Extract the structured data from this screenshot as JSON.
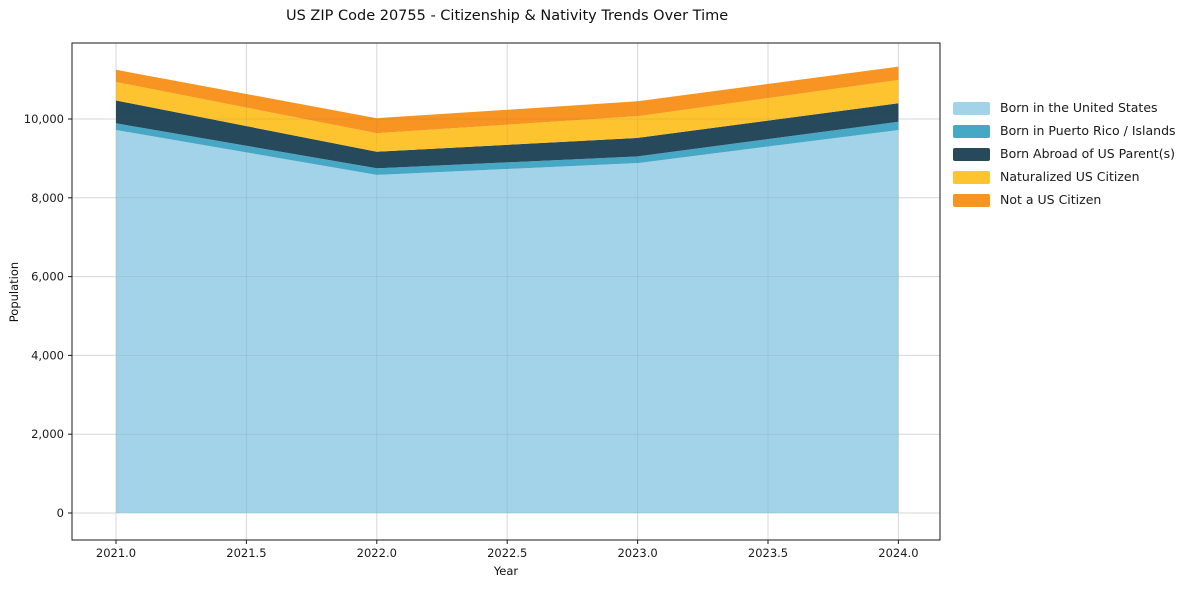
{
  "chart_data": {
    "type": "area",
    "stacked": true,
    "title": "US ZIP Code 20755 - Citizenship & Nativity Trends Over Time",
    "xlabel": "Year",
    "ylabel": "Population",
    "x": [
      2021,
      2022,
      2023,
      2024
    ],
    "series": [
      {
        "name": "Born in the United States",
        "color": "#a2d3e8",
        "values": [
          9720,
          8580,
          8880,
          9720
        ]
      },
      {
        "name": "Born in Puerto Rico / Islands",
        "color": "#47a8c6",
        "values": [
          170,
          170,
          170,
          210
        ]
      },
      {
        "name": "Born Abroad of US Parent(s)",
        "color": "#27495c",
        "values": [
          580,
          420,
          470,
          470
        ]
      },
      {
        "name": "Naturalized US Citizen",
        "color": "#fdc42f",
        "values": [
          470,
          470,
          550,
          590
        ]
      },
      {
        "name": "Not a US Citizen",
        "color": "#f89422",
        "values": [
          310,
          380,
          380,
          340
        ]
      }
    ],
    "xticks": [
      2021.0,
      2021.5,
      2022.0,
      2022.5,
      2023.0,
      2023.5,
      2024.0
    ],
    "xtick_labels": [
      "2021.0",
      "2021.5",
      "2022.0",
      "2022.5",
      "2023.0",
      "2023.5",
      "2024.0"
    ],
    "yticks": [
      0,
      2000,
      4000,
      6000,
      8000,
      10000
    ],
    "ytick_labels": [
      "0",
      "2,000",
      "4,000",
      "6,000",
      "8,000",
      "10,000"
    ],
    "xlim": [
      2020.83,
      2024.17
    ],
    "ylim": [
      -685,
      11926
    ],
    "grid": true,
    "legend_position": "right-outside",
    "colors": {
      "grid": "#e7e7e7",
      "spine": "#1a1a1a",
      "background": "#ffffff"
    }
  }
}
